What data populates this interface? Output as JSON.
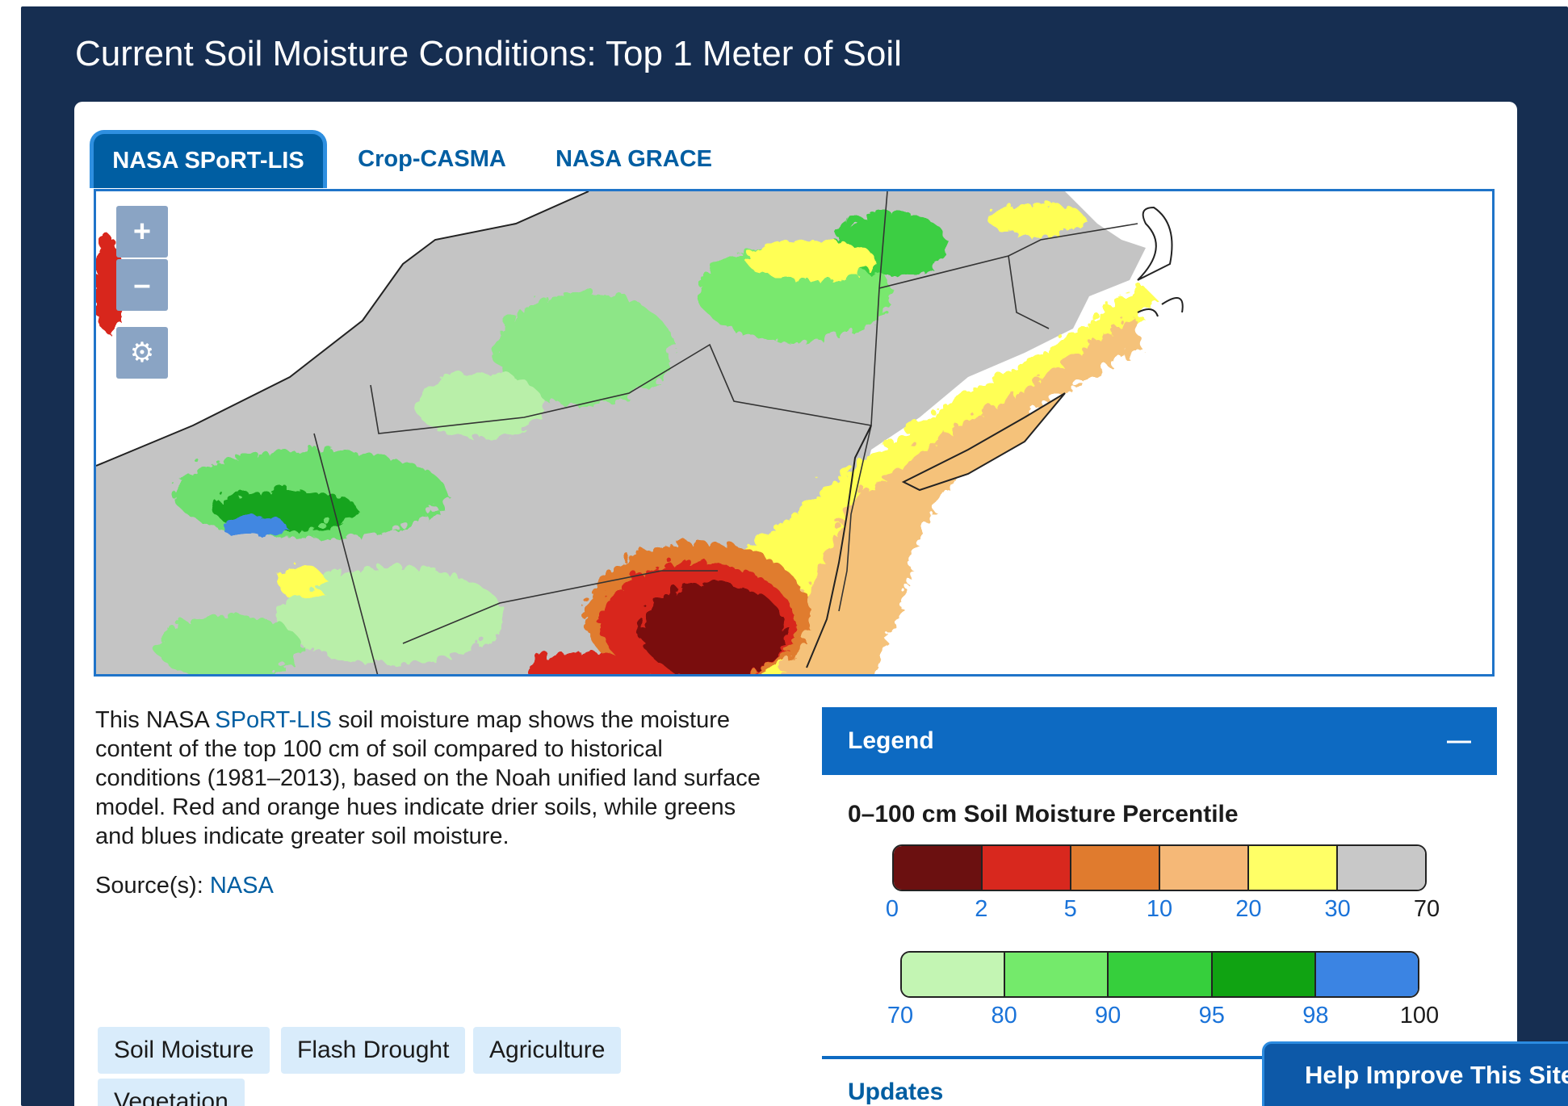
{
  "page_title": "Current Soil Moisture Conditions: Top 1 Meter of Soil",
  "tabs": [
    {
      "label": "NASA SPoRT-LIS",
      "active": true
    },
    {
      "label": "Crop-CASMA",
      "active": false
    },
    {
      "label": "NASA GRACE",
      "active": false
    }
  ],
  "map_controls": {
    "zoom_in": "+",
    "zoom_out": "–"
  },
  "description": {
    "prefix": "This NASA ",
    "link": "SPoRT-LIS",
    "suffix": " soil moisture map shows the moisture content of the top 100 cm of soil compared to historical conditions (1981–2013), based on the Noah unified land surface model. Red and orange hues indicate drier soils, while greens and blues indicate greater soil moisture."
  },
  "source": {
    "label": "Source(s): ",
    "link": "NASA"
  },
  "tags": [
    "Soil Moisture",
    "Flash Drought",
    "Agriculture",
    "Vegetation"
  ],
  "legend": {
    "header": "Legend",
    "collapse_symbol": "—",
    "title": "0–100 cm Soil Moisture Percentile",
    "dry_scale": {
      "colors": [
        "#6b1010",
        "#d8281e",
        "#e07b2e",
        "#f5b877",
        "#ffff66",
        "#c8c8c8"
      ],
      "ticks": [
        "0",
        "2",
        "5",
        "10",
        "20",
        "30",
        "70"
      ]
    },
    "wet_scale": {
      "colors": [
        "#c3f5b3",
        "#74ea6b",
        "#36cf3c",
        "#10a312",
        "#3b84e3"
      ],
      "ticks": [
        "70",
        "80",
        "90",
        "95",
        "98",
        "100"
      ]
    }
  },
  "updates_label": "Updates",
  "help_button": "Help Improve This Site"
}
